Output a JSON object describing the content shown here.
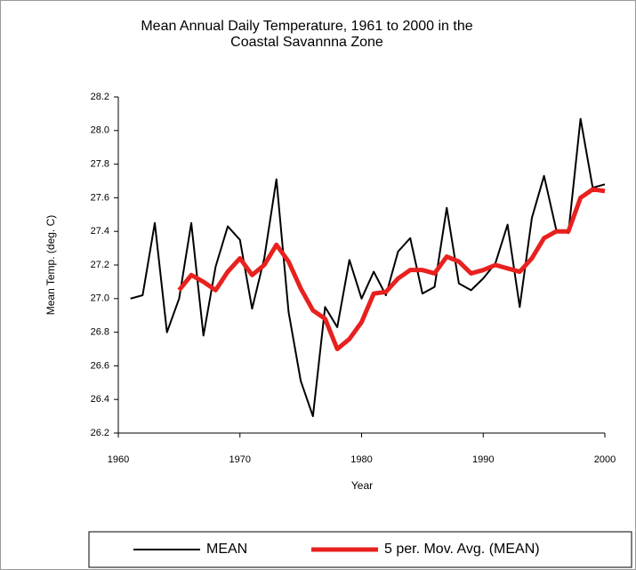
{
  "chart_data": {
    "type": "line",
    "title": [
      "Mean Annual Daily Temperature, 1961 to 2000 in the",
      "Coastal Savannna Zone"
    ],
    "xlabel": "Year",
    "ylabel": "Mean Temp. (deg. C)",
    "x": [
      1961,
      1962,
      1963,
      1964,
      1965,
      1966,
      1967,
      1968,
      1969,
      1970,
      1971,
      1972,
      1973,
      1974,
      1975,
      1976,
      1977,
      1978,
      1979,
      1980,
      1981,
      1982,
      1983,
      1984,
      1985,
      1986,
      1987,
      1988,
      1989,
      1990,
      1991,
      1992,
      1993,
      1994,
      1995,
      1996,
      1997,
      1998,
      1999,
      2000
    ],
    "series": [
      {
        "name": "MEAN",
        "color": "#000000",
        "width": 2,
        "values": [
          27.0,
          27.02,
          27.45,
          26.8,
          27.0,
          27.45,
          26.78,
          27.19,
          27.43,
          27.35,
          26.94,
          27.24,
          27.71,
          26.92,
          26.51,
          26.3,
          26.95,
          26.83,
          27.23,
          27.0,
          27.16,
          27.02,
          27.28,
          27.36,
          27.03,
          27.07,
          27.54,
          27.09,
          27.05,
          27.12,
          27.21,
          27.44,
          26.95,
          27.48,
          27.73,
          27.41,
          27.39,
          28.07,
          27.66,
          27.68
        ]
      },
      {
        "name": "5 per. Mov. Avg. (MEAN)",
        "color": "#e8211f",
        "width": 5,
        "values": [
          null,
          null,
          null,
          null,
          27.05,
          27.14,
          27.1,
          27.05,
          27.16,
          27.24,
          27.14,
          27.2,
          27.32,
          27.22,
          27.06,
          26.93,
          26.88,
          26.7,
          26.76,
          26.86,
          27.03,
          27.04,
          27.12,
          27.17,
          27.17,
          27.15,
          27.25,
          27.22,
          27.15,
          27.17,
          27.2,
          27.18,
          27.16,
          27.24,
          27.36,
          27.4,
          27.4,
          27.6,
          27.65,
          27.64
        ]
      }
    ],
    "xlim": [
      1960,
      2000
    ],
    "xticks": [
      1960,
      1970,
      1980,
      1990,
      2000
    ],
    "ylim": [
      26.2,
      28.2
    ],
    "yticks": [
      26.2,
      26.4,
      26.6,
      26.8,
      {
        "value": 27.0,
        "label": "27.0"
      },
      27.2,
      27.4,
      27.6,
      27.8,
      {
        "value": 28.0,
        "label": "28.0"
      },
      28.2
    ],
    "grid": false,
    "legend": "bottom"
  }
}
